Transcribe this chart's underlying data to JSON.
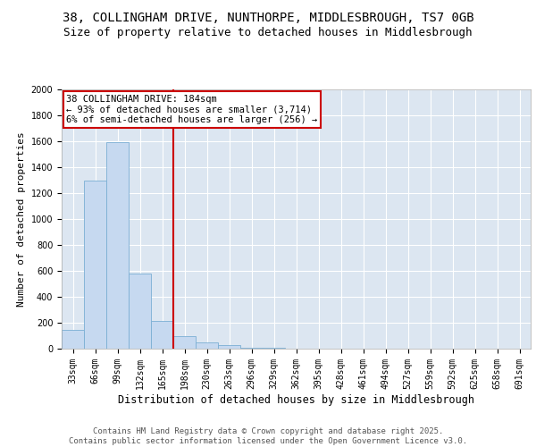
{
  "title": "38, COLLINGHAM DRIVE, NUNTHORPE, MIDDLESBROUGH, TS7 0GB",
  "subtitle": "Size of property relative to detached houses in Middlesbrough",
  "xlabel": "Distribution of detached houses by size in Middlesbrough",
  "ylabel": "Number of detached properties",
  "categories": [
    "33sqm",
    "66sqm",
    "99sqm",
    "132sqm",
    "165sqm",
    "198sqm",
    "230sqm",
    "263sqm",
    "296sqm",
    "329sqm",
    "362sqm",
    "395sqm",
    "428sqm",
    "461sqm",
    "494sqm",
    "527sqm",
    "559sqm",
    "592sqm",
    "625sqm",
    "658sqm",
    "691sqm"
  ],
  "values": [
    145,
    1300,
    1590,
    580,
    215,
    100,
    50,
    25,
    10,
    5,
    3,
    2,
    1,
    0,
    0,
    0,
    0,
    0,
    0,
    0,
    0
  ],
  "bar_color": "#c6d9f0",
  "bar_edge_color": "#7bafd4",
  "vline_color": "#cc0000",
  "annotation_text": "38 COLLINGHAM DRIVE: 184sqm\n← 93% of detached houses are smaller (3,714)\n6% of semi-detached houses are larger (256) →",
  "annotation_box_color": "#ffffff",
  "annotation_box_edge_color": "#cc0000",
  "ylim": [
    0,
    2000
  ],
  "yticks": [
    0,
    200,
    400,
    600,
    800,
    1000,
    1200,
    1400,
    1600,
    1800,
    2000
  ],
  "bg_color": "#dce6f1",
  "grid_color": "#ffffff",
  "fig_bg_color": "#ffffff",
  "footer_line1": "Contains HM Land Registry data © Crown copyright and database right 2025.",
  "footer_line2": "Contains public sector information licensed under the Open Government Licence v3.0.",
  "title_fontsize": 10,
  "subtitle_fontsize": 9,
  "xlabel_fontsize": 8.5,
  "ylabel_fontsize": 8,
  "tick_fontsize": 7,
  "footer_fontsize": 6.5,
  "annot_fontsize": 7.5
}
